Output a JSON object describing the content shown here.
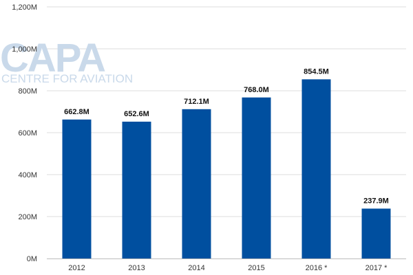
{
  "watermark": {
    "brand": "CAPA",
    "tagline": "CENTRE FOR AVIATION"
  },
  "chart_data": {
    "type": "bar",
    "title": "",
    "xlabel": "",
    "ylabel": "",
    "categories": [
      "2012",
      "2013",
      "2014",
      "2015",
      "2016 *",
      "2017 *"
    ],
    "values": [
      662.8,
      652.6,
      712.1,
      768.0,
      854.5,
      237.9
    ],
    "data_labels": [
      "662.8M",
      "652.6M",
      "712.1M",
      "768.0M",
      "854.5M",
      "237.9M"
    ],
    "y_ticks": [
      0,
      200,
      400,
      600,
      800,
      1000,
      1200
    ],
    "y_tick_labels": [
      "0M",
      "200M",
      "400M",
      "600M",
      "800M",
      "1,000M",
      "1,200M"
    ],
    "ylim": [
      0,
      1200
    ],
    "grid": true,
    "legend": "none",
    "colors": {
      "bar": "#004f9f",
      "grid": "#dcdcdc",
      "axis": "#bbbbbb"
    }
  }
}
